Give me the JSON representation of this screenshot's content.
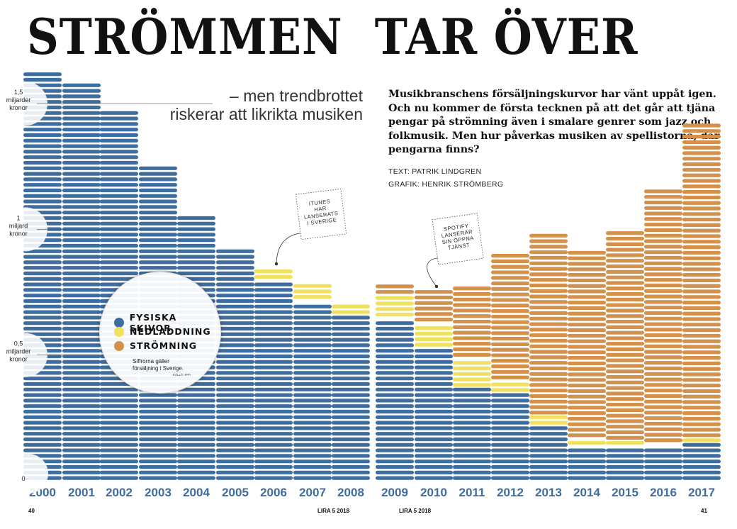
{
  "header": {
    "title": "STRÖMMEN  TAR ÖVER",
    "subtitle_line1": "– men trendbrottet",
    "subtitle_line2": "riskerar att likrikta musiken",
    "intro": "Musikbranschens försäljningskurvor har vänt uppåt igen. Och nu kommer de första tecknen på att det går att tjäna pengar på strömning även i smalare genrer som jazz och folkmusik. Men hur påverkas musiken av spellistorna, där pengarna finns?",
    "text_credit": "TEXT: PATRIK LINDGREN",
    "graphic_credit": "GRAFIK: HENRIK STRÖMBERG"
  },
  "legend": {
    "items": [
      {
        "label": "FYSISKA SKIVOR",
        "color": "#3f6d9e"
      },
      {
        "label": "NEDLADDNING",
        "color": "#f1e160"
      },
      {
        "label": "STRÖMNING",
        "color": "#d3914c"
      }
    ],
    "note": "Siffrorna gäller försäljning i Sverige.",
    "source": "KÄLLA: IFPI"
  },
  "footer": {
    "left_page": "40",
    "left_mag": "LIRA 5 2018",
    "right_mag": "LIRA 5 2018",
    "right_page": "41"
  },
  "chart_data": {
    "type": "bar",
    "stacked": true,
    "categories": [
      "2000",
      "2001",
      "2002",
      "2003",
      "2004",
      "2005",
      "2006",
      "2007",
      "2008",
      "2009",
      "2010",
      "2011",
      "2012",
      "2013",
      "2014",
      "2015",
      "2016",
      "2017"
    ],
    "series": [
      {
        "name": "FYSISKA SKIVOR",
        "color": "#3f6d9e",
        "values": [
          1.63,
          1.6,
          1.48,
          1.26,
          1.06,
          0.92,
          0.8,
          0.72,
          0.66,
          0.65,
          0.53,
          0.37,
          0.35,
          0.22,
          0.14,
          0.14,
          0.14,
          0.15
        ]
      },
      {
        "name": "NEDLADDNING",
        "color": "#f1e160",
        "values": [
          0,
          0,
          0,
          0,
          0,
          0,
          0.06,
          0.07,
          0.06,
          0.09,
          0.1,
          0.12,
          0.05,
          0.04,
          0.03,
          0.02,
          0.01,
          0.02
        ]
      },
      {
        "name": "STRÖMNING",
        "color": "#d3914c",
        "values": [
          0,
          0,
          0,
          0,
          0,
          0,
          0,
          0,
          0,
          0.06,
          0.14,
          0.29,
          0.51,
          0.74,
          0.75,
          0.84,
          1.01,
          1.27
        ]
      }
    ],
    "ylim": [
      0,
      1.63
    ],
    "y_ticks": [
      {
        "value": 1.5,
        "lines": [
          "1,5",
          "miljarder",
          "kronor"
        ]
      },
      {
        "value": 1.0,
        "lines": [
          "1",
          "miljard",
          "kronor"
        ]
      },
      {
        "value": 0.5,
        "lines": [
          "0,5",
          "miljarder",
          "kronor"
        ]
      },
      {
        "value": 0,
        "lines": [
          "0"
        ]
      }
    ],
    "annotations": [
      {
        "category": "2006",
        "text": "ITUNES HAR LANSERATS I SVERIGE",
        "lines": [
          "ITUNES",
          "HAR",
          "LANSERATS",
          "I SVERIGE"
        ]
      },
      {
        "category": "2010",
        "text": "SPOTIFY LANSERAR SIN ÖPPNA TJÄNST",
        "lines": [
          "SPOTIFY",
          "LANSERAR",
          "SIN ÖPPNA",
          "TJÄNST"
        ]
      }
    ]
  }
}
